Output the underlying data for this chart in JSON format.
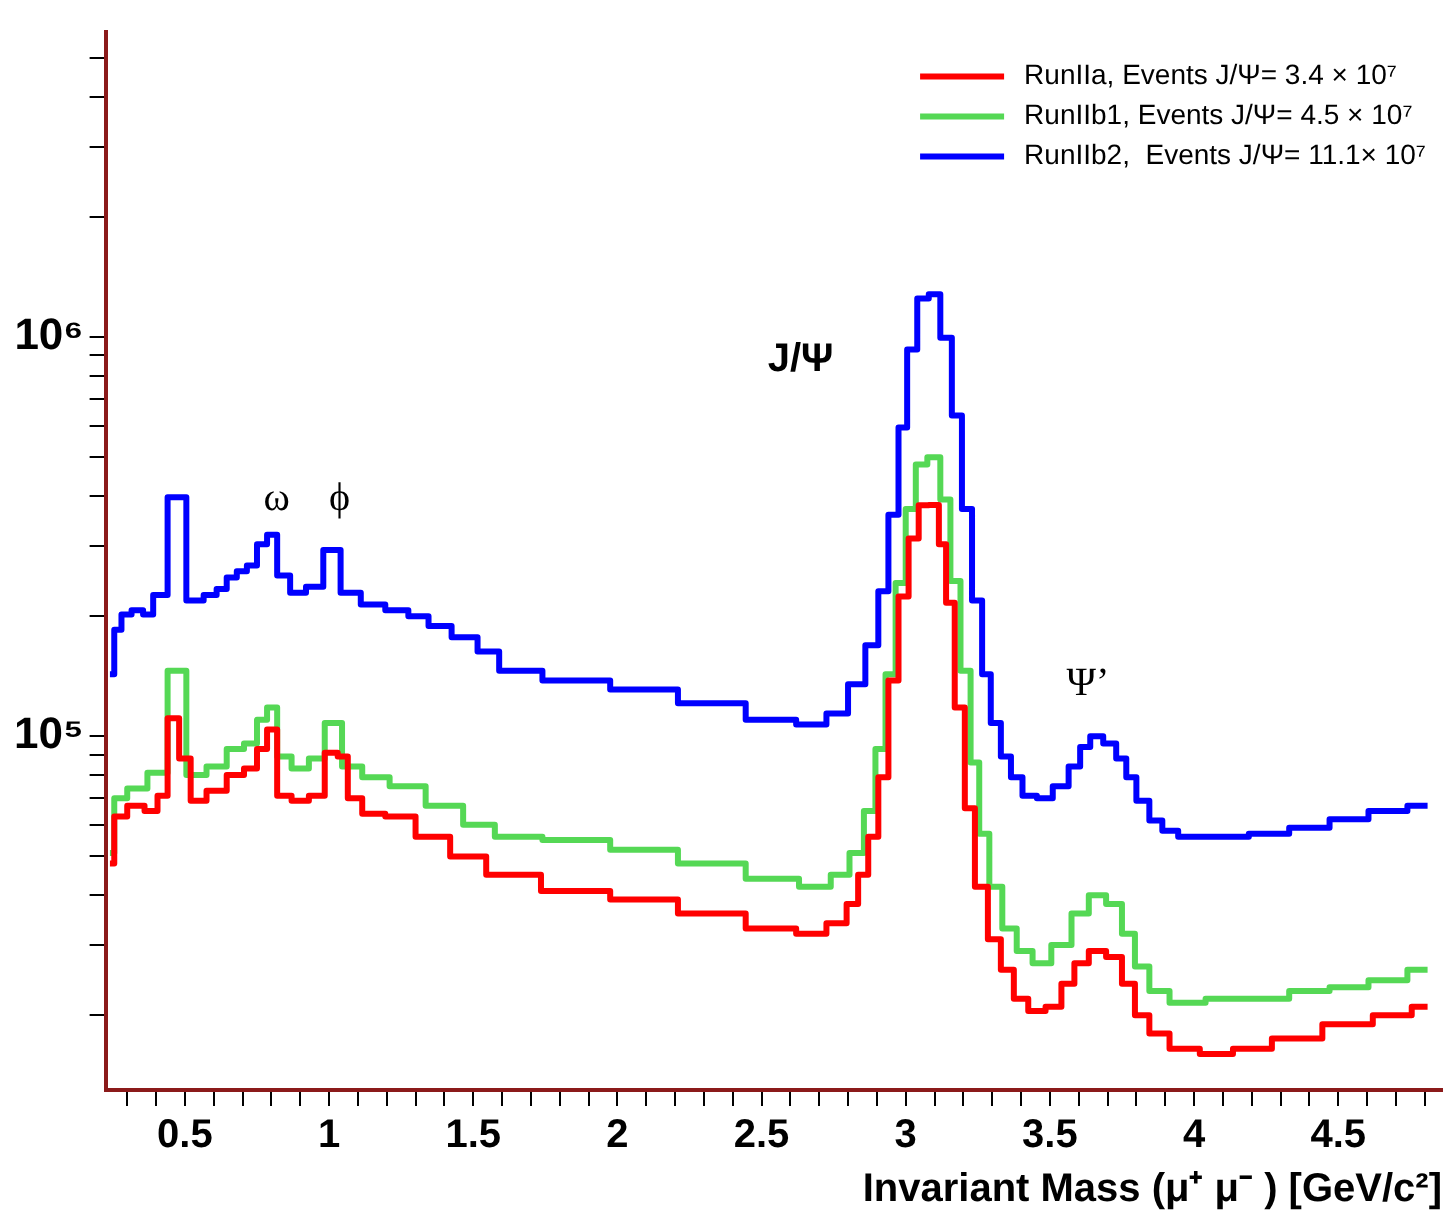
{
  "chart_data": {
    "type": "step",
    "xlabel": "Invariant Mass (μ⁺ μ⁻ ) [GeV/c²]",
    "log": "y",
    "legend": "top right",
    "xlim": [
      0.225,
      4.86
    ],
    "xticks": [
      {
        "value": 0.3,
        "label": null
      },
      {
        "value": 0.4,
        "label": null
      },
      0.5,
      {
        "value": 0.6,
        "label": null
      },
      {
        "value": 0.7,
        "label": null
      },
      {
        "value": 0.8,
        "label": null
      },
      {
        "value": 0.9,
        "label": null
      },
      1,
      {
        "value": 1.1,
        "label": null
      },
      {
        "value": 1.2,
        "label": null
      },
      {
        "value": 1.3,
        "label": null
      },
      {
        "value": 1.4,
        "label": null
      },
      1.5,
      {
        "value": 1.6,
        "label": null
      },
      {
        "value": 1.7,
        "label": null
      },
      {
        "value": 1.8,
        "label": null
      },
      {
        "value": 1.9,
        "label": null
      },
      2,
      {
        "value": 2.1,
        "label": null
      },
      {
        "value": 2.2,
        "label": null
      },
      {
        "value": 2.3,
        "label": null
      },
      {
        "value": 2.4,
        "label": null
      },
      2.5,
      {
        "value": 2.6,
        "label": null
      },
      {
        "value": 2.7,
        "label": null
      },
      {
        "value": 2.8,
        "label": null
      },
      {
        "value": 2.9,
        "label": null
      },
      3,
      {
        "value": 3.1,
        "label": null
      },
      {
        "value": 3.2,
        "label": null
      },
      {
        "value": 3.3,
        "label": null
      },
      {
        "value": 3.4,
        "label": null
      },
      3.5,
      {
        "value": 3.6,
        "label": null
      },
      {
        "value": 3.7,
        "label": null
      },
      {
        "value": 3.8,
        "label": null
      },
      {
        "value": 3.9,
        "label": null
      },
      4,
      {
        "value": 4.1,
        "label": null
      },
      {
        "value": 4.2,
        "label": null
      },
      {
        "value": 4.3,
        "label": null
      },
      {
        "value": 4.4,
        "label": null
      },
      4.5,
      {
        "value": 4.6,
        "label": null
      },
      {
        "value": 4.7,
        "label": null
      },
      {
        "value": 4.8,
        "label": null
      }
    ],
    "ylim": [
      13000,
      5800000
    ],
    "yticks": [
      {
        "value": 20000,
        "label": null
      },
      {
        "value": 30000,
        "label": null
      },
      {
        "value": 40000,
        "label": null
      },
      {
        "value": 50000,
        "label": null
      },
      {
        "value": 60000,
        "label": null
      },
      {
        "value": 70000,
        "label": null
      },
      {
        "value": 80000,
        "label": null
      },
      {
        "value": 90000,
        "label": null
      },
      {
        "value": 100000,
        "label": "10⁵"
      },
      {
        "value": 200000,
        "label": null
      },
      {
        "value": 300000,
        "label": null
      },
      {
        "value": 400000,
        "label": null
      },
      {
        "value": 500000,
        "label": null
      },
      {
        "value": 600000,
        "label": null
      },
      {
        "value": 700000,
        "label": null
      },
      {
        "value": 800000,
        "label": null
      },
      {
        "value": 900000,
        "label": null
      },
      {
        "value": 1000000,
        "label": "10⁶"
      },
      {
        "value": 2000000,
        "label": null
      },
      {
        "value": 3000000,
        "label": null
      },
      {
        "value": 4000000,
        "label": null
      },
      {
        "value": 5000000,
        "label": null
      }
    ],
    "series": [
      {
        "name": "RunIIa, Events J/Ψ= 3.4 × 10⁷",
        "color": "#ff0000",
        "x": [
          0.24,
          0.27,
          0.33,
          0.39,
          0.42,
          0.46,
          0.5,
          0.54,
          0.61,
          0.68,
          0.73,
          0.77,
          0.8,
          0.84,
          0.9,
          0.96,
          1.01,
          1.05,
          1.08,
          1.15,
          1.24,
          1.36,
          1.48,
          1.61,
          1.86,
          2.09,
          2.33,
          2.56,
          2.68,
          2.77,
          2.82,
          2.85,
          2.89,
          2.92,
          2.96,
          2.99,
          3.03,
          3.06,
          3.1,
          3.13,
          3.15,
          3.19,
          3.22,
          3.26,
          3.31,
          3.35,
          3.4,
          3.45,
          3.52,
          3.56,
          3.61,
          3.66,
          3.73,
          3.77,
          3.82,
          3.87,
          3.96,
          4.08,
          4.19,
          4.35,
          4.54,
          4.7,
          4.81
        ],
        "values": [
          48000,
          63000,
          67000,
          65000,
          71000,
          111000,
          88000,
          69000,
          73000,
          80000,
          83000,
          93000,
          104000,
          71000,
          69000,
          71000,
          91000,
          89000,
          70000,
          64000,
          63000,
          56000,
          50000,
          45000,
          41000,
          39000,
          36000,
          33000,
          32000,
          34000,
          38000,
          45000,
          56000,
          79000,
          138000,
          224000,
          313000,
          379000,
          380000,
          303000,
          216000,
          118000,
          66000,
          42000,
          31000,
          26000,
          22000,
          20500,
          21000,
          24000,
          27000,
          29000,
          28000,
          24000,
          20000,
          18000,
          16500,
          16000,
          16500,
          17500,
          19000,
          20000,
          21000
        ]
      },
      {
        "name": "RunIIb1, Events J/Ψ= 4.5 × 10⁷",
        "color": "#55d855",
        "x": [
          0.24,
          0.27,
          0.33,
          0.41,
          0.47,
          0.54,
          0.61,
          0.68,
          0.73,
          0.77,
          0.8,
          0.84,
          0.9,
          0.96,
          1.01,
          1.08,
          1.15,
          1.27,
          1.4,
          1.53,
          1.62,
          1.86,
          2.09,
          2.33,
          2.56,
          2.7,
          2.78,
          2.83,
          2.88,
          2.91,
          2.95,
          2.98,
          3.02,
          3.05,
          3.1,
          3.14,
          3.17,
          3.21,
          3.24,
          3.27,
          3.31,
          3.36,
          3.41,
          3.47,
          3.54,
          3.61,
          3.66,
          3.73,
          3.77,
          3.82,
          3.87,
          3.96,
          4.12,
          4.26,
          4.4,
          4.54,
          4.67,
          4.81
        ],
        "values": [
          51000,
          70000,
          74000,
          81000,
          146000,
          80000,
          84000,
          93000,
          96000,
          110000,
          118000,
          89000,
          83000,
          88000,
          108000,
          84000,
          79000,
          75000,
          67000,
          60000,
          56000,
          55000,
          52000,
          48000,
          44000,
          42000,
          45000,
          51000,
          65000,
          93000,
          143000,
          242000,
          371000,
          480000,
          500000,
          392000,
          245000,
          146000,
          86000,
          57000,
          42000,
          33000,
          29000,
          27000,
          30000,
          36000,
          40000,
          38000,
          32000,
          26500,
          23000,
          21500,
          22000,
          22000,
          23000,
          23500,
          24500,
          26000
        ]
      },
      {
        "name": "RunIIb2,  Events J/Ψ= 11.1× 10⁷",
        "color": "#0000ff",
        "x": [
          0.24,
          0.27,
          0.29,
          0.34,
          0.37,
          0.41,
          0.47,
          0.54,
          0.59,
          0.63,
          0.66,
          0.7,
          0.73,
          0.77,
          0.8,
          0.84,
          0.89,
          0.95,
          1.01,
          1.07,
          1.15,
          1.24,
          1.31,
          1.38,
          1.47,
          1.56,
          1.62,
          1.86,
          2.09,
          2.33,
          2.56,
          2.68,
          2.77,
          2.83,
          2.89,
          2.92,
          2.96,
          2.99,
          3.02,
          3.06,
          3.1,
          3.14,
          3.18,
          3.21,
          3.25,
          3.28,
          3.31,
          3.35,
          3.38,
          3.43,
          3.48,
          3.54,
          3.59,
          3.62,
          3.66,
          3.71,
          3.75,
          3.78,
          3.82,
          3.87,
          3.91,
          3.98,
          4.12,
          4.26,
          4.4,
          4.54,
          4.67,
          4.81
        ],
        "values": [
          143000,
          185000,
          202000,
          207000,
          202000,
          226000,
          397000,
          219000,
          226000,
          234000,
          250000,
          259000,
          268000,
          303000,
          320000,
          253000,
          229000,
          237000,
          293000,
          229000,
          214000,
          207000,
          200000,
          189000,
          177000,
          163000,
          146000,
          138000,
          131000,
          121000,
          110000,
          107000,
          114000,
          135000,
          169000,
          231000,
          359000,
          594000,
          931000,
          1250000,
          1280000,
          997000,
          636000,
          371000,
          219000,
          143000,
          108000,
          89000,
          79000,
          71000,
          70000,
          75000,
          84000,
          94000,
          100000,
          96000,
          88000,
          79000,
          69000,
          61500,
          58000,
          56000,
          56000,
          57000,
          59000,
          62000,
          65000,
          67000
        ]
      }
    ],
    "annotations": [
      "ω",
      "ϕ",
      "J/Ψ",
      "Ψ’"
    ]
  }
}
